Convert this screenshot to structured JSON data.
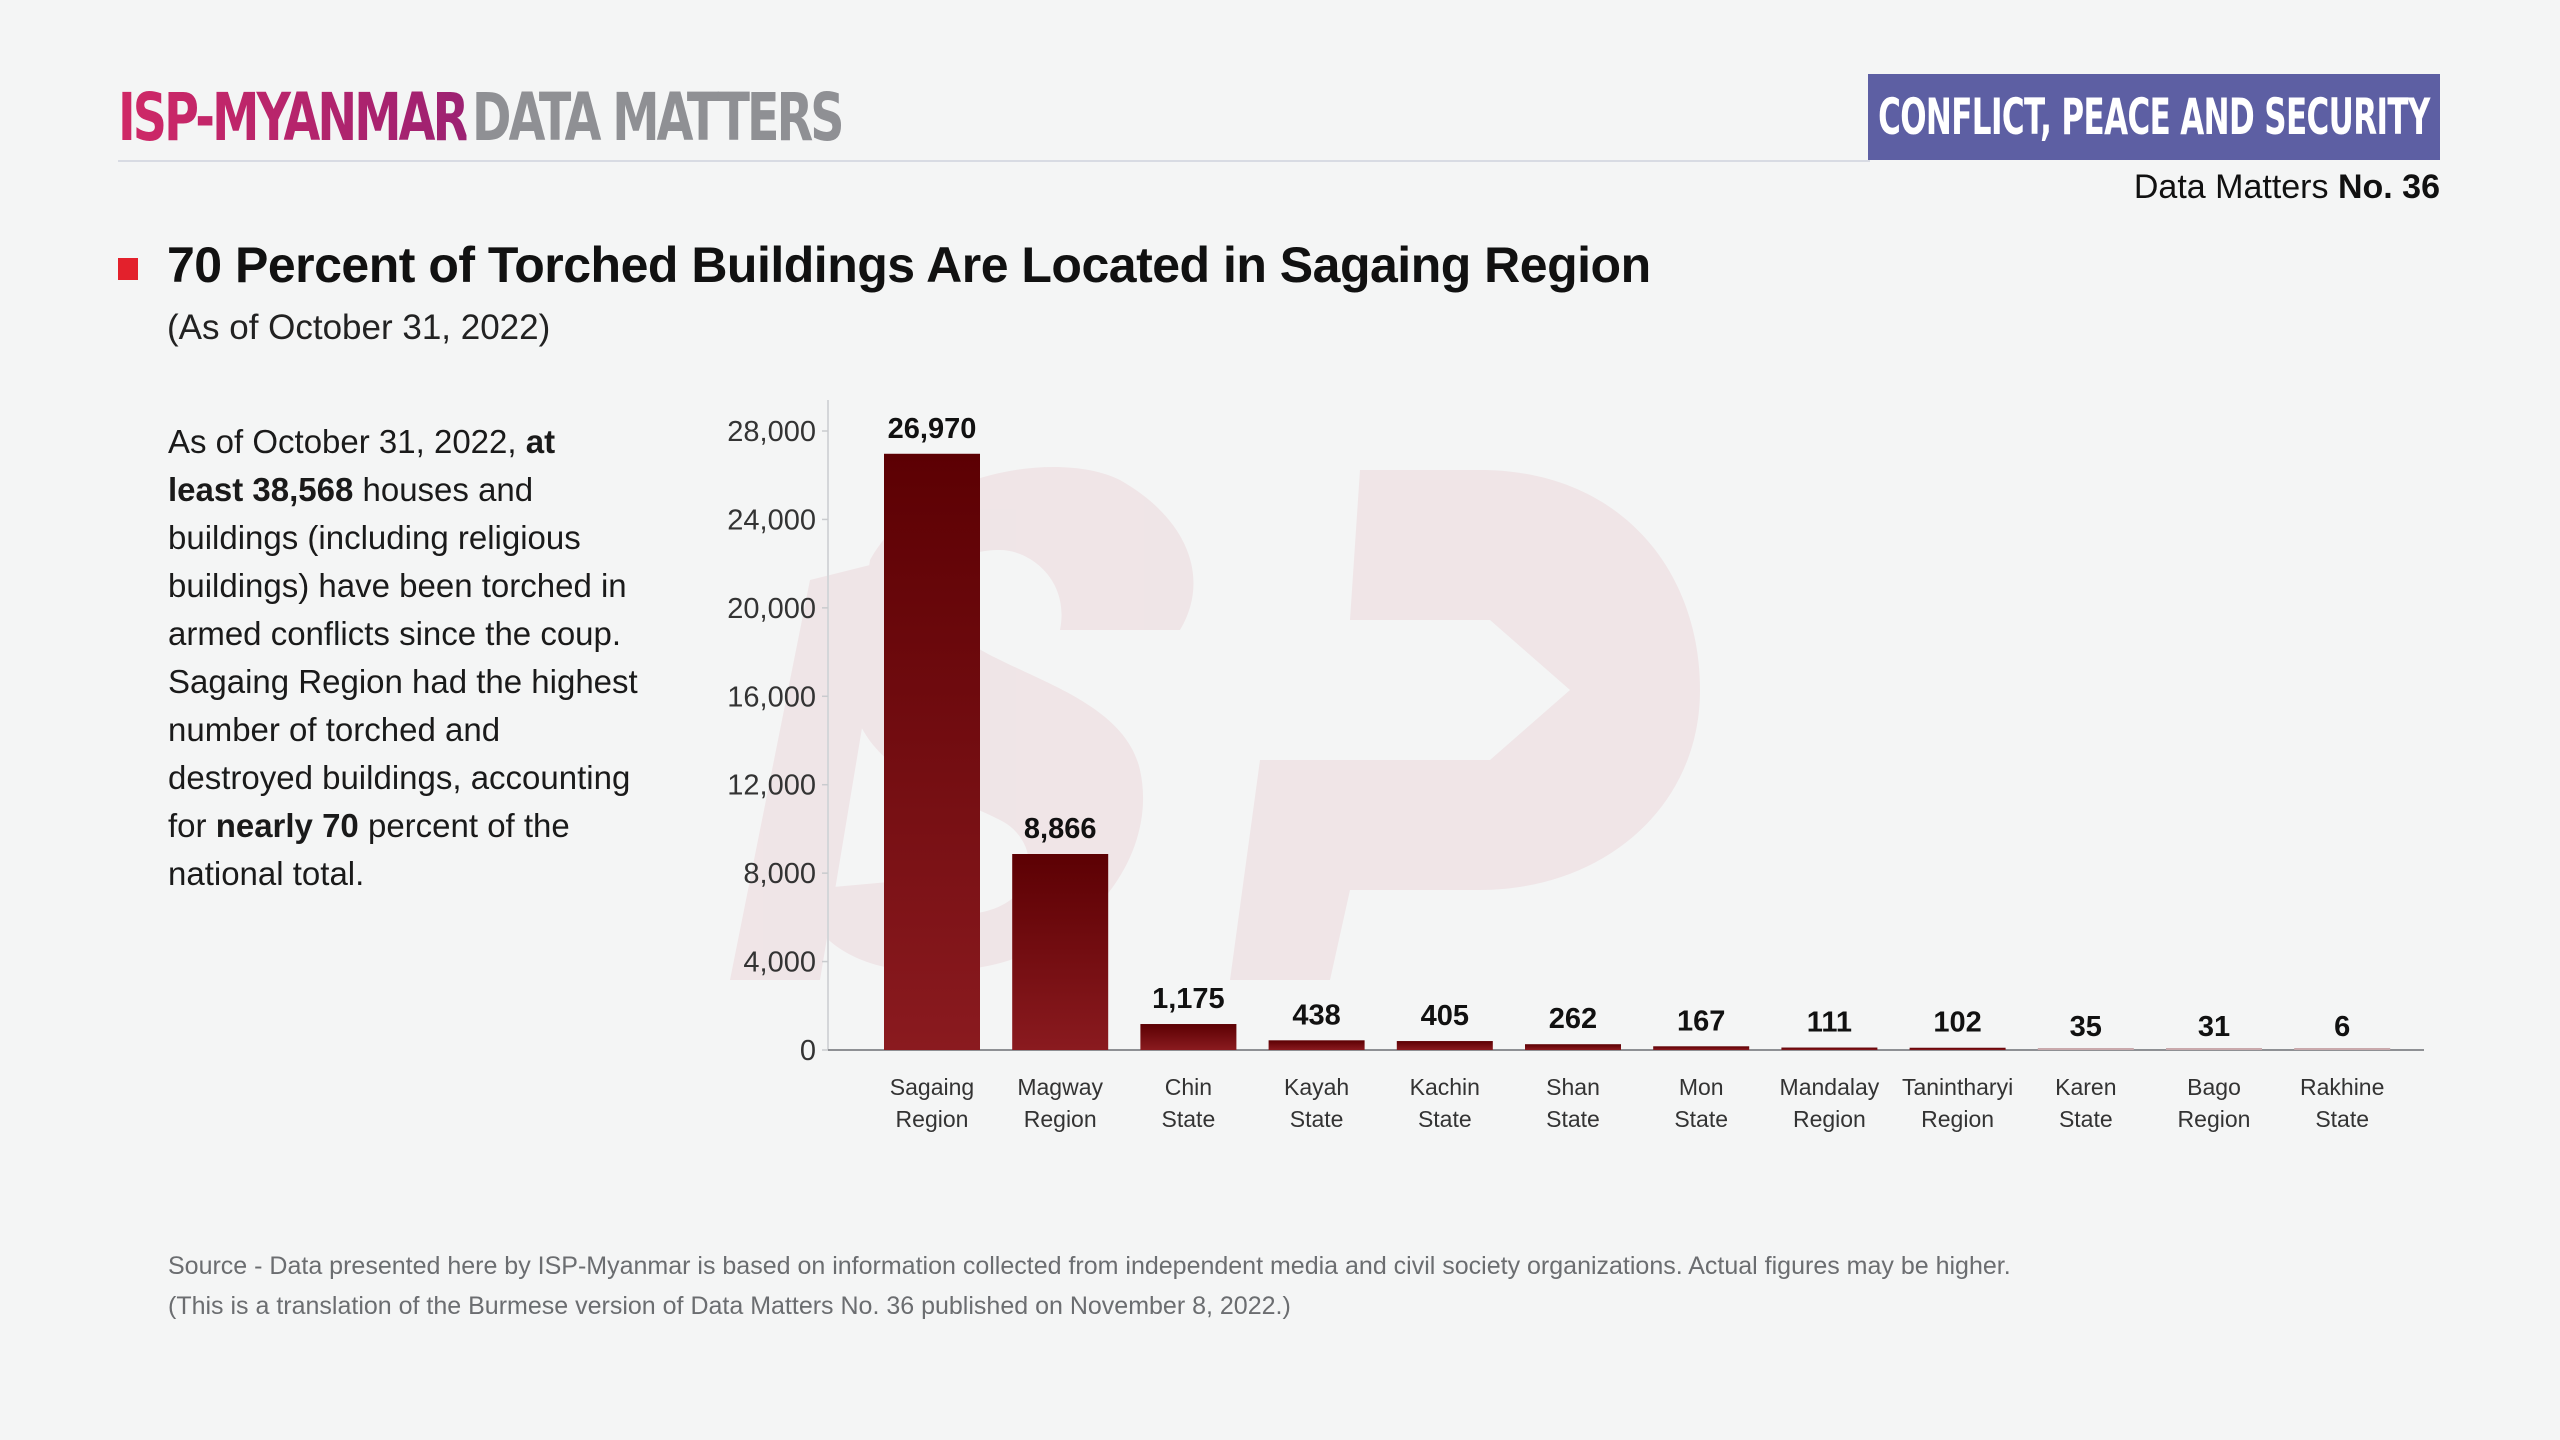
{
  "header": {
    "brand_primary": "ISP-MYANMAR",
    "brand_secondary": "DATA MATTERS",
    "category_badge": "CONFLICT, PEACE AND SECURITY",
    "issue_prefix": "Data Matters",
    "issue_number": "No. 36",
    "brand_color": "#c8266a",
    "badge_color": "#5d5fa3"
  },
  "title": {
    "main": "70 Percent of Torched Buildings Are Located in Sagaing Region",
    "subtitle": "(As of October 31, 2022)",
    "marker_color": "#e3212c"
  },
  "summary": {
    "p1": "As of October 31, 2022, ",
    "b1": "at least 38,568",
    "p2": " houses and buildings (including religious buildings) have been torched in armed conflicts since the coup. Sagaing Region had the highest number of torched and destroyed buildings, accounting for ",
    "b2": "nearly 70",
    "p3": " percent of the national total."
  },
  "footer": {
    "source": "Source - Data presented here by ISP-Myanmar is based on information collected from independent media and civil society organizations. Actual figures may be higher.",
    "note": "(This is a translation of the Burmese version of Data Matters No. 36 published on November 8, 2022.)"
  },
  "watermark": "ISP",
  "chart_data": {
    "type": "bar",
    "title": "70 Percent of Torched Buildings Are Located in Sagaing Region",
    "xlabel": "",
    "ylabel": "",
    "categories": [
      [
        "Sagaing",
        "Region"
      ],
      [
        "Magway",
        "Region"
      ],
      [
        "Chin",
        "State"
      ],
      [
        "Kayah",
        "State"
      ],
      [
        "Kachin",
        "State"
      ],
      [
        "Shan",
        "State"
      ],
      [
        "Mon",
        "State"
      ],
      [
        "Mandalay",
        "Region"
      ],
      [
        "Tanintharyi",
        "Region"
      ],
      [
        "Karen",
        "State"
      ],
      [
        "Bago",
        "Region"
      ],
      [
        "Rakhine",
        "State"
      ]
    ],
    "values": [
      26970,
      8866,
      1175,
      438,
      405,
      262,
      167,
      111,
      102,
      35,
      31,
      6
    ],
    "value_labels": [
      "26,970",
      "8,866",
      "1,175",
      "438",
      "405",
      "262",
      "167",
      "111",
      "102",
      "35",
      "31",
      "6"
    ],
    "ylim": [
      0,
      29000
    ],
    "yticks": [
      0,
      4000,
      8000,
      12000,
      16000,
      20000,
      24000,
      28000
    ],
    "ytick_labels": [
      "0",
      "4,000",
      "8,000",
      "12,000",
      "16,000",
      "20,000",
      "24,000",
      "28,000"
    ],
    "grid": false,
    "legend": "none",
    "bar_color_top": "#5c0003",
    "bar_color_bottom": "#8a1a1f"
  }
}
